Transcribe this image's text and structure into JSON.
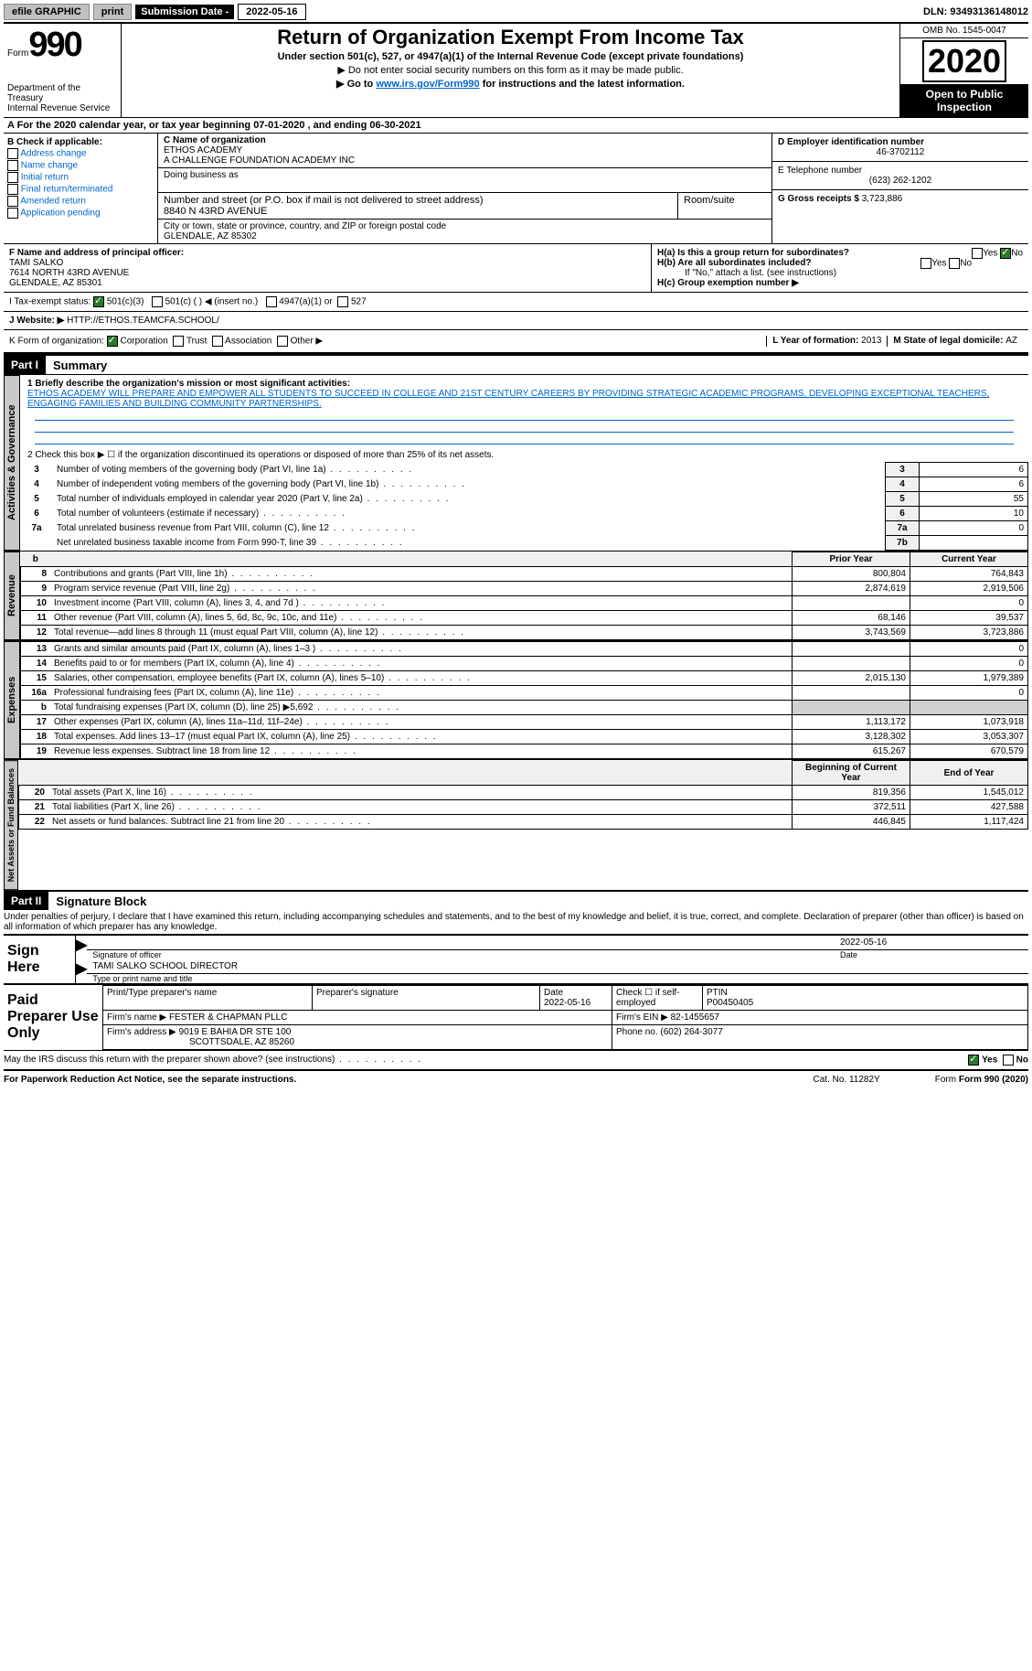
{
  "topbar": {
    "efile": "efile GRAPHIC",
    "print": "print",
    "sub_label": "Submission Date - ",
    "sub_date": "2022-05-16",
    "dln": "DLN: 93493136148012"
  },
  "header": {
    "form_word": "Form",
    "form_num": "990",
    "dept1": "Department of the Treasury",
    "dept2": "Internal Revenue Service",
    "title": "Return of Organization Exempt From Income Tax",
    "sub": "Under section 501(c), 527, or 4947(a)(1) of the Internal Revenue Code (except private foundations)",
    "note1": "▶ Do not enter social security numbers on this form as it may be made public.",
    "note2_a": "▶ Go to ",
    "note2_link": "www.irs.gov/Form990",
    "note2_b": " for instructions and the latest information.",
    "omb": "OMB No. 1545-0047",
    "year": "2020",
    "inspect1": "Open to Public",
    "inspect2": "Inspection"
  },
  "rowA": "A For the 2020 calendar year, or tax year beginning 07-01-2020    , and ending 06-30-2021",
  "colB": {
    "hdr": "B Check if applicable:",
    "items": [
      "Address change",
      "Name change",
      "Initial return",
      "Final return/terminated",
      "Amended return",
      "Application pending"
    ]
  },
  "colC": {
    "name_label": "C Name of organization",
    "name1": "ETHOS ACADEMY",
    "name2": "A CHALLENGE FOUNDATION ACADEMY INC",
    "dba_label": "Doing business as",
    "dba": "",
    "addr_label": "Number and street (or P.O. box if mail is not delivered to street address)",
    "addr": "8840 N 43RD AVENUE",
    "room_label": "Room/suite",
    "city_label": "City or town, state or province, country, and ZIP or foreign postal code",
    "city": "GLENDALE, AZ  85302"
  },
  "colD": {
    "ein_label": "D Employer identification number",
    "ein": "46-3702112",
    "tel_label": "E Telephone number",
    "tel": "(623) 262-1202",
    "gross_label": "G Gross receipts $ ",
    "gross": "3,723,886"
  },
  "rowF": {
    "label": "F  Name and address of principal officer:",
    "name": "TAMI SALKO",
    "addr1": "7614 NORTH 43RD AVENUE",
    "addr2": "GLENDALE, AZ  85301"
  },
  "rowH": {
    "a": "H(a)  Is this a group return for subordinates?",
    "b": "H(b)  Are all subordinates included?",
    "b_note": "If \"No,\" attach a list. (see instructions)",
    "c": "H(c)  Group exemption number ▶"
  },
  "rowI": {
    "label": "I    Tax-exempt status:",
    "o1": "501(c)(3)",
    "o2": "501(c) (  ) ◀ (insert no.)",
    "o3": "4947(a)(1) or",
    "o4": "527"
  },
  "rowJ": {
    "label": "J   Website: ▶  ",
    "url": "HTTP://ETHOS.TEAMCFA.SCHOOL/"
  },
  "rowK": {
    "label": "K Form of organization:",
    "o1": "Corporation",
    "o2": "Trust",
    "o3": "Association",
    "o4": "Other ▶",
    "year_label": "L Year of formation: ",
    "year": "2013",
    "state_label": "M State of legal domicile: ",
    "state": "AZ"
  },
  "part1": {
    "tag": "Part I",
    "title": "Summary"
  },
  "mission": {
    "label": "1  Briefly describe the organization's mission or most significant activities:",
    "text": "ETHOS ACADEMY WILL PREPARE AND EMPOWER ALL STUDENTS TO SUCCEED IN COLLEGE AND 21ST CENTURY CAREERS BY PROVIDING STRATEGIC ACADEMIC PROGRAMS, DEVELOPING EXCEPTIONAL TEACHERS, ENGAGING FAMILIES AND BUILDING COMMUNITY PARTNERSHIPS."
  },
  "gov_lines": {
    "l2": "2   Check this box ▶ ☐  if the organization discontinued its operations or disposed of more than 25% of its net assets.",
    "rows": [
      {
        "n": "3",
        "d": "Number of voting members of the governing body (Part VI, line 1a)",
        "b": "3",
        "v": "6"
      },
      {
        "n": "4",
        "d": "Number of independent voting members of the governing body (Part VI, line 1b)",
        "b": "4",
        "v": "6"
      },
      {
        "n": "5",
        "d": "Total number of individuals employed in calendar year 2020 (Part V, line 2a)",
        "b": "5",
        "v": "55"
      },
      {
        "n": "6",
        "d": "Total number of volunteers (estimate if necessary)",
        "b": "6",
        "v": "10"
      },
      {
        "n": "7a",
        "d": "Total unrelated business revenue from Part VIII, column (C), line 12",
        "b": "7a",
        "v": "0"
      },
      {
        "n": "",
        "d": "Net unrelated business taxable income from Form 990-T, line 39",
        "b": "7b",
        "v": ""
      }
    ]
  },
  "fin_headers": {
    "b": "b",
    "prior": "Prior Year",
    "current": "Current Year"
  },
  "revenue": [
    {
      "n": "8",
      "d": "Contributions and grants (Part VIII, line 1h)",
      "p": "800,804",
      "c": "764,843"
    },
    {
      "n": "9",
      "d": "Program service revenue (Part VIII, line 2g)",
      "p": "2,874,619",
      "c": "2,919,506"
    },
    {
      "n": "10",
      "d": "Investment income (Part VIII, column (A), lines 3, 4, and 7d )",
      "p": "",
      "c": "0"
    },
    {
      "n": "11",
      "d": "Other revenue (Part VIII, column (A), lines 5, 6d, 8c, 9c, 10c, and 11e)",
      "p": "68,146",
      "c": "39,537"
    },
    {
      "n": "12",
      "d": "Total revenue—add lines 8 through 11 (must equal Part VIII, column (A), line 12)",
      "p": "3,743,569",
      "c": "3,723,886"
    }
  ],
  "expenses": [
    {
      "n": "13",
      "d": "Grants and similar amounts paid (Part IX, column (A), lines 1–3 )",
      "p": "",
      "c": "0"
    },
    {
      "n": "14",
      "d": "Benefits paid to or for members (Part IX, column (A), line 4)",
      "p": "",
      "c": "0"
    },
    {
      "n": "15",
      "d": "Salaries, other compensation, employee benefits (Part IX, column (A), lines 5–10)",
      "p": "2,015,130",
      "c": "1,979,389"
    },
    {
      "n": "16a",
      "d": "Professional fundraising fees (Part IX, column (A), line 11e)",
      "p": "",
      "c": "0"
    },
    {
      "n": "b",
      "d": "Total fundraising expenses (Part IX, column (D), line 25) ▶5,692",
      "p": "shade",
      "c": "shade"
    },
    {
      "n": "17",
      "d": "Other expenses (Part IX, column (A), lines 11a–11d, 11f–24e)",
      "p": "1,113,172",
      "c": "1,073,918"
    },
    {
      "n": "18",
      "d": "Total expenses. Add lines 13–17 (must equal Part IX, column (A), line 25)",
      "p": "3,128,302",
      "c": "3,053,307"
    },
    {
      "n": "19",
      "d": "Revenue less expenses. Subtract line 18 from line 12",
      "p": "615,267",
      "c": "670,579"
    }
  ],
  "net_headers": {
    "begin": "Beginning of Current Year",
    "end": "End of Year"
  },
  "netassets": [
    {
      "n": "20",
      "d": "Total assets (Part X, line 16)",
      "p": "819,356",
      "c": "1,545,012"
    },
    {
      "n": "21",
      "d": "Total liabilities (Part X, line 26)",
      "p": "372,511",
      "c": "427,588"
    },
    {
      "n": "22",
      "d": "Net assets or fund balances. Subtract line 21 from line 20",
      "p": "446,845",
      "c": "1,117,424"
    }
  ],
  "tabs": {
    "gov": "Activities & Governance",
    "rev": "Revenue",
    "exp": "Expenses",
    "net": "Net Assets or Fund Balances"
  },
  "part2": {
    "tag": "Part II",
    "title": "Signature Block"
  },
  "penalty": "Under penalties of perjury, I declare that I have examined this return, including accompanying schedules and statements, and to the best of my knowledge and belief, it is true, correct, and complete. Declaration of preparer (other than officer) is based on all information of which preparer has any knowledge.",
  "sign": {
    "here": "Sign Here",
    "sig_label": "Signature of officer",
    "date_label": "Date",
    "date": "2022-05-16",
    "name": "TAMI SALKO  SCHOOL DIRECTOR",
    "name_label": "Type or print name and title"
  },
  "paid": {
    "label": "Paid Preparer Use Only",
    "h1": "Print/Type preparer's name",
    "h2": "Preparer's signature",
    "h3": "Date",
    "h3v": "2022-05-16",
    "h4": "Check ☐ if self-employed",
    "h5": "PTIN",
    "h5v": "P00450405",
    "firm_label": "Firm's name      ▶ ",
    "firm": "FESTER & CHAPMAN PLLC",
    "ein_label": "Firm's EIN ▶ ",
    "ein": "82-1455657",
    "addr_label": "Firm's address ▶ ",
    "addr1": "9019 E BAHIA DR STE 100",
    "addr2": "SCOTTSDALE, AZ  85260",
    "phone_label": "Phone no. ",
    "phone": "(602) 264-3077"
  },
  "discuss": "May the IRS discuss this return with the preparer shown above? (see instructions)",
  "footer": {
    "pra": "For Paperwork Reduction Act Notice, see the separate instructions.",
    "cat": "Cat. No. 11282Y",
    "form": "Form 990 (2020)"
  }
}
